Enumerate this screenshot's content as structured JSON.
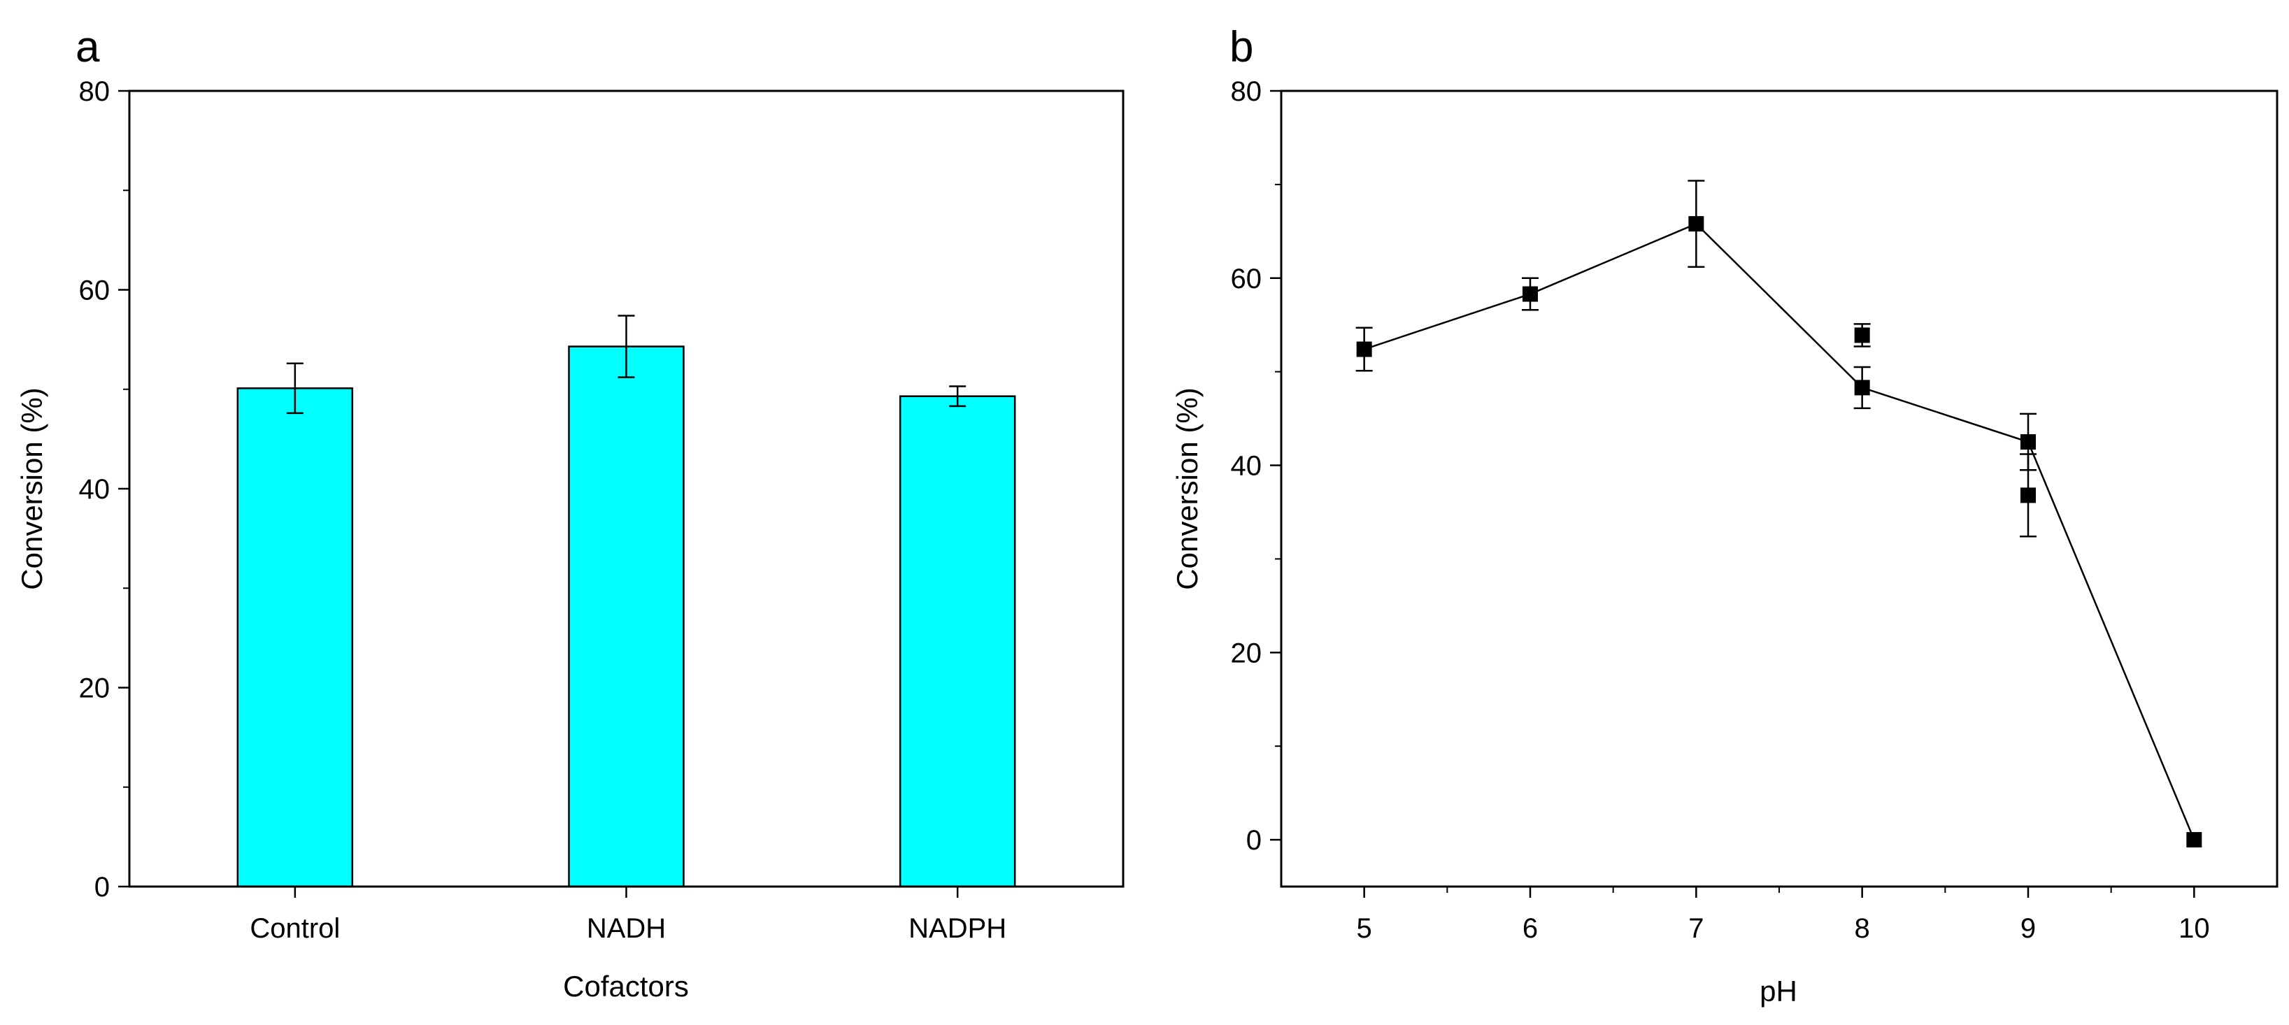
{
  "chart_data": [
    {
      "panel": "a",
      "type": "bar",
      "title": "",
      "xlabel": "Cofactors",
      "ylabel": "Conversion (%)",
      "categories": [
        "Control",
        "NADH",
        "NADPH"
      ],
      "values": [
        50.1,
        54.3,
        49.3
      ],
      "errors": [
        2.5,
        3.1,
        1.0
      ],
      "ylim": [
        0,
        80
      ],
      "yticks": [
        0,
        20,
        40,
        60,
        80
      ],
      "bar_color": "#00FFFF",
      "grid": false
    },
    {
      "panel": "b",
      "type": "line",
      "title": "",
      "xlabel": "pH",
      "ylabel": "Conversion (%)",
      "x": [
        5,
        6,
        7,
        8,
        8,
        9,
        9,
        10
      ],
      "y": [
        52.4,
        58.3,
        65.8,
        53.9,
        48.3,
        42.5,
        36.8,
        0.0
      ],
      "errors": [
        2.3,
        1.7,
        4.6,
        1.2,
        2.2,
        3.0,
        4.4,
        0.0
      ],
      "line_x": [
        5,
        6,
        7,
        8,
        9,
        10
      ],
      "line_y": [
        52.4,
        58.3,
        65.8,
        48.3,
        42.5,
        0.0
      ],
      "xlim": [
        4.5,
        10.5
      ],
      "xticks": [
        5,
        6,
        7,
        8,
        9,
        10
      ],
      "ylim": [
        -5,
        80
      ],
      "yticks": [
        0,
        20,
        40,
        60,
        80
      ],
      "marker": "square",
      "color": "#000000",
      "grid": false
    }
  ]
}
